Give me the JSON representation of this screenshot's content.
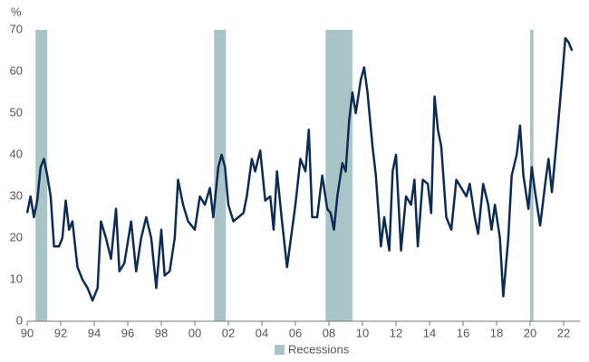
{
  "chart_data": {
    "type": "line",
    "y_label": "%",
    "xlim": [
      1990,
      2023
    ],
    "ylim": [
      0,
      70
    ],
    "xticks": [
      {
        "value": 1990,
        "label": "90"
      },
      {
        "value": 1992,
        "label": "92"
      },
      {
        "value": 1994,
        "label": "94"
      },
      {
        "value": 1996,
        "label": "96"
      },
      {
        "value": 1998,
        "label": "98"
      },
      {
        "value": 2000,
        "label": "00"
      },
      {
        "value": 2002,
        "label": "02"
      },
      {
        "value": 2004,
        "label": "04"
      },
      {
        "value": 2006,
        "label": "06"
      },
      {
        "value": 2008,
        "label": "08"
      },
      {
        "value": 2010,
        "label": "10"
      },
      {
        "value": 2012,
        "label": "12"
      },
      {
        "value": 2014,
        "label": "14"
      },
      {
        "value": 2016,
        "label": "16"
      },
      {
        "value": 2018,
        "label": "18"
      },
      {
        "value": 2020,
        "label": "20"
      },
      {
        "value": 2022,
        "label": "22"
      }
    ],
    "yticks": [
      0,
      10,
      20,
      30,
      40,
      50,
      60,
      70
    ],
    "recession_label": "Recessions",
    "recession_color": "#a9c4c6",
    "recessions": [
      [
        1990.5,
        1991.2
      ],
      [
        2001.15,
        2001.85
      ],
      [
        2007.8,
        2009.4
      ],
      [
        2020.0,
        2020.2
      ]
    ],
    "x": [
      1990.0,
      1990.2,
      1990.4,
      1990.6,
      1990.8,
      1991.0,
      1991.2,
      1991.4,
      1991.6,
      1991.9,
      1992.1,
      1992.3,
      1992.5,
      1992.7,
      1993.0,
      1993.3,
      1993.6,
      1993.9,
      1994.2,
      1994.4,
      1994.7,
      1995.0,
      1995.3,
      1995.5,
      1995.8,
      1996.2,
      1996.5,
      1996.8,
      1997.1,
      1997.4,
      1997.7,
      1998.0,
      1998.2,
      1998.5,
      1998.8,
      1999.0,
      1999.3,
      1999.6,
      2000.0,
      2000.3,
      2000.6,
      2000.9,
      2001.1,
      2001.4,
      2001.6,
      2001.8,
      2002.0,
      2002.3,
      2002.6,
      2002.9,
      2003.1,
      2003.4,
      2003.6,
      2003.9,
      2004.2,
      2004.5,
      2004.7,
      2004.9,
      2005.2,
      2005.5,
      2005.8,
      2006.0,
      2006.3,
      2006.6,
      2006.8,
      2007.0,
      2007.3,
      2007.6,
      2007.9,
      2008.1,
      2008.3,
      2008.5,
      2008.8,
      2009.0,
      2009.2,
      2009.4,
      2009.6,
      2009.9,
      2010.1,
      2010.3,
      2010.6,
      2010.8,
      2011.1,
      2011.3,
      2011.6,
      2011.8,
      2012.0,
      2012.3,
      2012.6,
      2012.9,
      2013.1,
      2013.3,
      2013.6,
      2013.9,
      2014.1,
      2014.3,
      2014.5,
      2014.7,
      2015.0,
      2015.3,
      2015.6,
      2015.9,
      2016.2,
      2016.4,
      2016.7,
      2016.9,
      2017.2,
      2017.5,
      2017.7,
      2017.9,
      2018.2,
      2018.4,
      2018.7,
      2018.9,
      2019.2,
      2019.4,
      2019.6,
      2019.9,
      2020.1,
      2020.3,
      2020.6,
      2020.9,
      2021.1,
      2021.3,
      2021.6,
      2021.9,
      2022.1,
      2022.3,
      2022.5
    ],
    "series": [
      {
        "color": "#0d2c54",
        "values": [
          26,
          30,
          25,
          29,
          37,
          39,
          35,
          30,
          18,
          18,
          20,
          29,
          22,
          24,
          13,
          10,
          8,
          5,
          8,
          24,
          20,
          15,
          27,
          12,
          14,
          24,
          12,
          20,
          25,
          20,
          8,
          22,
          11,
          12,
          20,
          34,
          28,
          24,
          22,
          30,
          28,
          32,
          25,
          37,
          40,
          37,
          28,
          24,
          25,
          26,
          30,
          39,
          36,
          41,
          29,
          30,
          22,
          36,
          24,
          13,
          22,
          28,
          39,
          36,
          46,
          25,
          25,
          35,
          27,
          26,
          22,
          30,
          38,
          36,
          48,
          55,
          50,
          58,
          61,
          55,
          42,
          35,
          18,
          25,
          17,
          36,
          40,
          17,
          30,
          28,
          34,
          18,
          34,
          33,
          26,
          54,
          46,
          42,
          25,
          22,
          34,
          32,
          30,
          33,
          25,
          21,
          33,
          28,
          22,
          28,
          20,
          6,
          20,
          35,
          40,
          47,
          35,
          27,
          37,
          31,
          23,
          33,
          39,
          31,
          44,
          58,
          68,
          67,
          65
        ]
      }
    ]
  }
}
